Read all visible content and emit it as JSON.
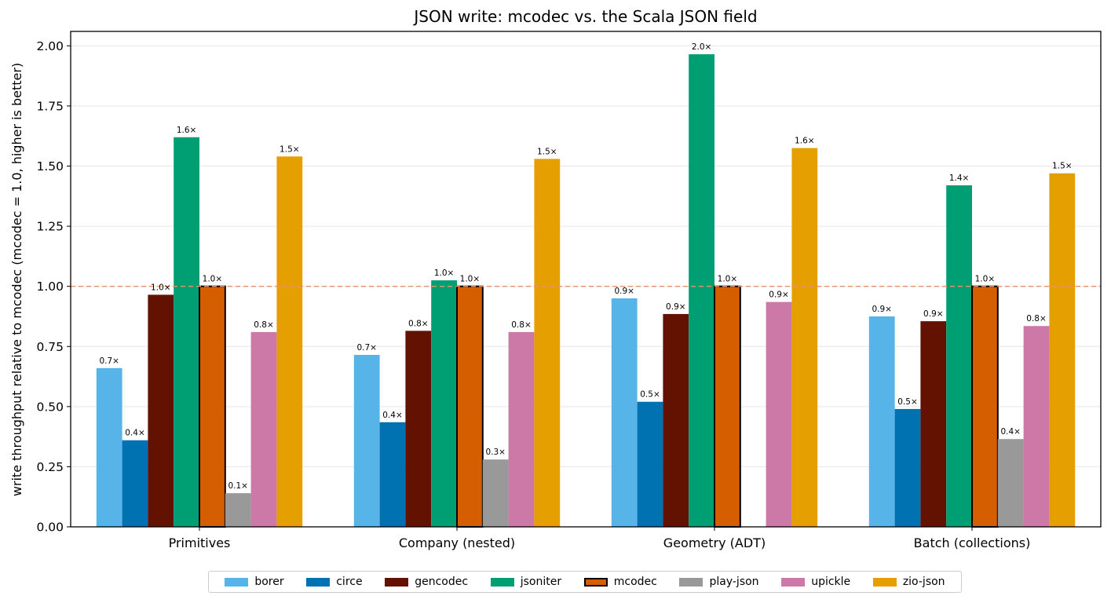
{
  "chart_data": {
    "type": "bar",
    "title": "JSON write: mcodec vs. the Scala JSON field",
    "ylabel": "write throughput relative to mcodec  (mcodec = 1.0, higher is better)",
    "xlabel": "",
    "ylim": [
      0,
      2.06
    ],
    "yticks": [
      "0.00",
      "0.25",
      "0.50",
      "0.75",
      "1.00",
      "1.25",
      "1.50",
      "1.75",
      "2.00"
    ],
    "grid": "horizontal",
    "reference_line": {
      "y": 1.0,
      "style": "dashed",
      "color": "#e8946a"
    },
    "legend_position": "bottom",
    "categories": [
      "Primitives",
      "Company (nested)",
      "Geometry (ADT)",
      "Batch (collections)"
    ],
    "series": [
      {
        "name": "borer",
        "color": "#56b4e9",
        "values": [
          0.66,
          0.715,
          0.95,
          0.875
        ],
        "labels": [
          "0.7×",
          "0.7×",
          "0.9×",
          "0.9×"
        ]
      },
      {
        "name": "circe",
        "color": "#0072b2",
        "values": [
          0.36,
          0.435,
          0.52,
          0.49
        ],
        "labels": [
          "0.4×",
          "0.4×",
          "0.5×",
          "0.5×"
        ]
      },
      {
        "name": "gencodec",
        "color": "#631202",
        "values": [
          0.965,
          0.815,
          0.885,
          0.855
        ],
        "labels": [
          "1.0×",
          "0.8×",
          "0.9×",
          "0.9×"
        ]
      },
      {
        "name": "jsoniter",
        "color": "#009e73",
        "values": [
          1.62,
          1.025,
          1.965,
          1.42
        ],
        "labels": [
          "1.6×",
          "1.0×",
          "2.0×",
          "1.4×"
        ]
      },
      {
        "name": "mcodec",
        "color": "#d55e00",
        "outlined": true,
        "values": [
          1.0,
          1.0,
          1.0,
          1.0
        ],
        "labels": [
          "1.0×",
          "1.0×",
          "1.0×",
          "1.0×"
        ]
      },
      {
        "name": "play-json",
        "color": "#999999",
        "values": [
          0.14,
          0.28,
          null,
          0.365
        ],
        "labels": [
          "0.1×",
          "0.3×",
          null,
          "0.4×"
        ]
      },
      {
        "name": "upickle",
        "color": "#cc79a7",
        "values": [
          0.81,
          0.81,
          0.935,
          0.835
        ],
        "labels": [
          "0.8×",
          "0.8×",
          "0.9×",
          "0.8×"
        ]
      },
      {
        "name": "zio-json",
        "color": "#e69f00",
        "values": [
          1.54,
          1.53,
          1.575,
          1.47
        ],
        "labels": [
          "1.5×",
          "1.5×",
          "1.6×",
          "1.5×"
        ]
      }
    ]
  }
}
